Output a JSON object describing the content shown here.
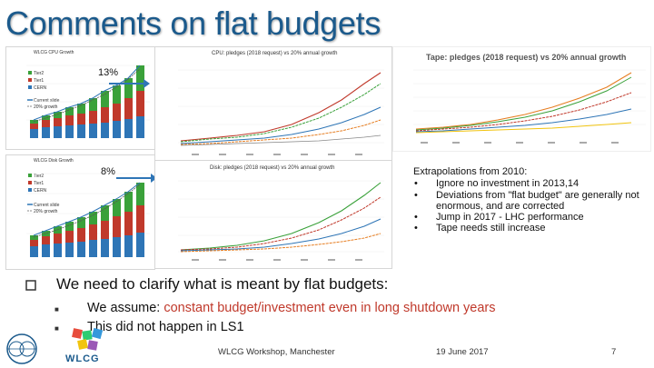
{
  "slide": {
    "title": "Comments on flat budgets",
    "page_number": "7"
  },
  "charts": {
    "cpu_growth": {
      "title": "WLCG CPU Growth",
      "legend": [
        "Tier2",
        "Tier1",
        "CERN",
        "Current slide",
        "20% growth"
      ],
      "annotation": "13%"
    },
    "cpu_pledges": {
      "title": "CPU: pledges (2018 request) vs 20% annual growth"
    },
    "tape_pledges": {
      "title": "Tape: pledges (2018 request) vs 20% annual growth"
    },
    "disk_growth": {
      "title": "WLCG Disk Growth",
      "legend": [
        "Tier2",
        "Tier1",
        "CERN",
        "Current slide",
        "20% growth"
      ],
      "annotation": "8%"
    },
    "disk_pledges": {
      "title": "Disk: pledges (2018 request) vs 20% annual growth"
    }
  },
  "notes": {
    "heading": "Extrapolations from 2010:",
    "items": [
      "Ignore no investment in 2013,14",
      "Deviations from \"flat budget\" are generally not enormous, and are corrected",
      "Jump in 2017 - LHC performance",
      "Tape needs still increase"
    ]
  },
  "body": {
    "main_bullet": "We need to clarify what is meant by flat budgets:",
    "sub_bullets": {
      "first_prefix": "We assume: ",
      "first_highlight": "constant budget/investment even in long shutdown years",
      "second": "This did not happen in LS1"
    }
  },
  "footer": {
    "event": "WLCG Workshop, Manchester",
    "date": "19 June 2017",
    "logo_text": "WLCG"
  },
  "colors": {
    "title_blue": "#1b5a8c",
    "tier2_green": "#3aa13a",
    "tier1_red": "#c0392b",
    "cern_blue": "#2e75b6",
    "highlight_red": "#c0392b"
  }
}
